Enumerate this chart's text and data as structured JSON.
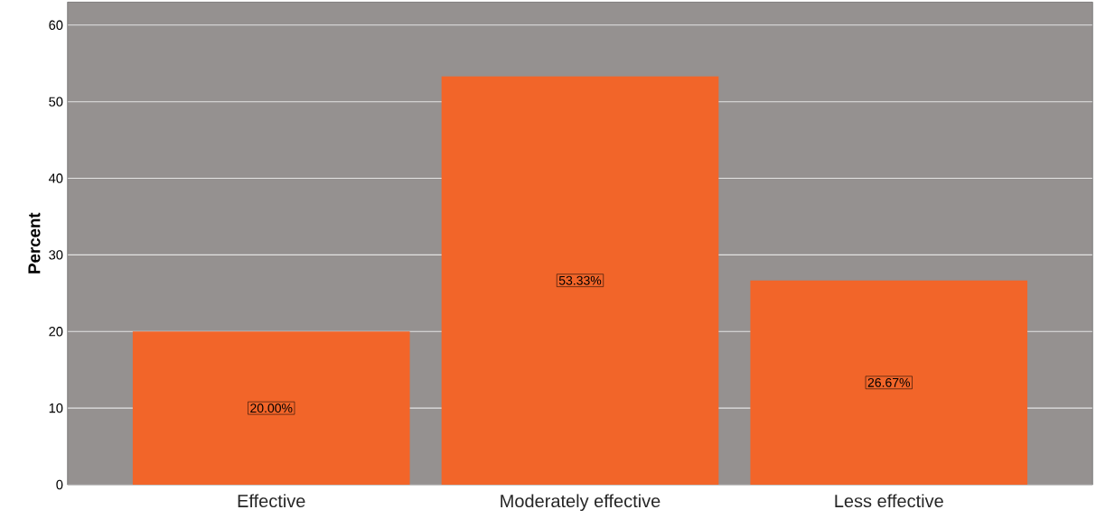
{
  "chart_data": {
    "type": "bar",
    "ylabel": "Percent",
    "categories": [
      "Effective",
      "Moderately effective",
      "Less effective"
    ],
    "values": [
      20,
      53.33,
      26.67
    ],
    "value_labels": [
      "20.00%",
      "53.33%",
      "26.67%"
    ],
    "color": "#f26529",
    "ylim": [
      0,
      63
    ],
    "yticks": [
      0,
      10,
      20,
      30,
      40,
      50,
      60
    ],
    "grid": "y"
  }
}
